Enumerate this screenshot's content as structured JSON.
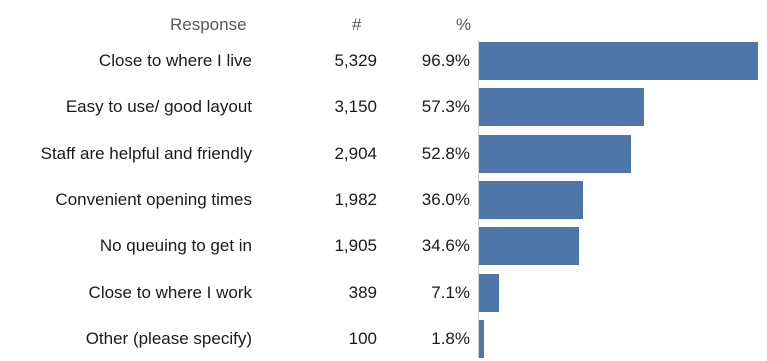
{
  "headers": {
    "response": "Response",
    "count": "#",
    "percent": "%"
  },
  "colors": {
    "bar": "#4f76a8",
    "text": "#1a1a1a",
    "header": "#595959"
  },
  "chart_data": {
    "type": "bar",
    "orientation": "horizontal",
    "categories": [
      "Close to where I live",
      "Easy to use/ good layout",
      "Staff are helpful and friendly",
      "Convenient opening times",
      "No queuing to get in",
      "Close to where I work",
      "Other (please specify)"
    ],
    "counts": [
      "5,329",
      "3,150",
      "2,904",
      "1,982",
      "1,905",
      "389",
      "100"
    ],
    "percent_labels": [
      "96.9%",
      "57.3%",
      "52.8%",
      "36.0%",
      "34.6%",
      "7.1%",
      "1.8%"
    ],
    "values": [
      96.9,
      57.3,
      52.8,
      36.0,
      34.6,
      7.1,
      1.8
    ],
    "xlim": [
      0,
      100
    ],
    "grid": false
  }
}
